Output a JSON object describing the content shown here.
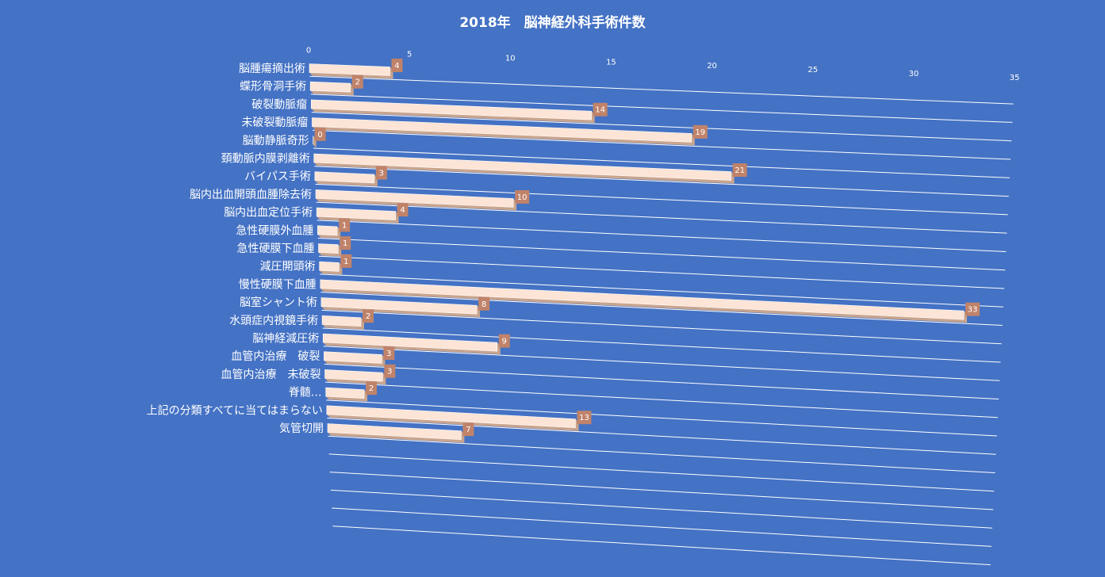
{
  "chart_data": {
    "type": "bar",
    "orientation": "horizontal",
    "title": "2018年　脳神経外科手術件数",
    "xlim": [
      0,
      35
    ],
    "xticks": [
      0,
      5,
      10,
      15,
      20,
      25,
      30,
      35
    ],
    "grid": true,
    "legend": "none",
    "data_labels": true,
    "categories": [
      "脳腫瘍摘出術",
      "蝶形骨洞手術",
      "破裂動脈瘤",
      "未破裂動脈瘤",
      "脳動静脈奇形",
      "頚動脈内膜剥離術",
      "バイパス手術",
      "脳内出血開頭血腫除去術",
      "脳内出血定位手術",
      "急性硬膜外血腫",
      "急性硬膜下血腫",
      "減圧開頭術",
      "慢性硬膜下血腫",
      "脳室シャント術",
      "水頭症内視鏡手術",
      "脳神経減圧術",
      "血管内治療　破裂",
      "血管内治療　未破裂",
      "脊髄…",
      "上記の分類すべてに当てはまらない",
      "気管切開"
    ],
    "values": [
      4,
      2,
      14,
      19,
      0,
      21,
      3,
      10,
      4,
      1,
      1,
      1,
      33,
      8,
      2,
      9,
      3,
      3,
      2,
      13,
      7
    ],
    "colors": {
      "background": "#4472C4",
      "bar_face": "#FCE4D6",
      "bar_side": "#F4B183",
      "bar_shadow": "#C9A58E",
      "label_box": "#C0836A",
      "gridline": "#FFFFFF",
      "text": "#FFFFFF"
    }
  }
}
